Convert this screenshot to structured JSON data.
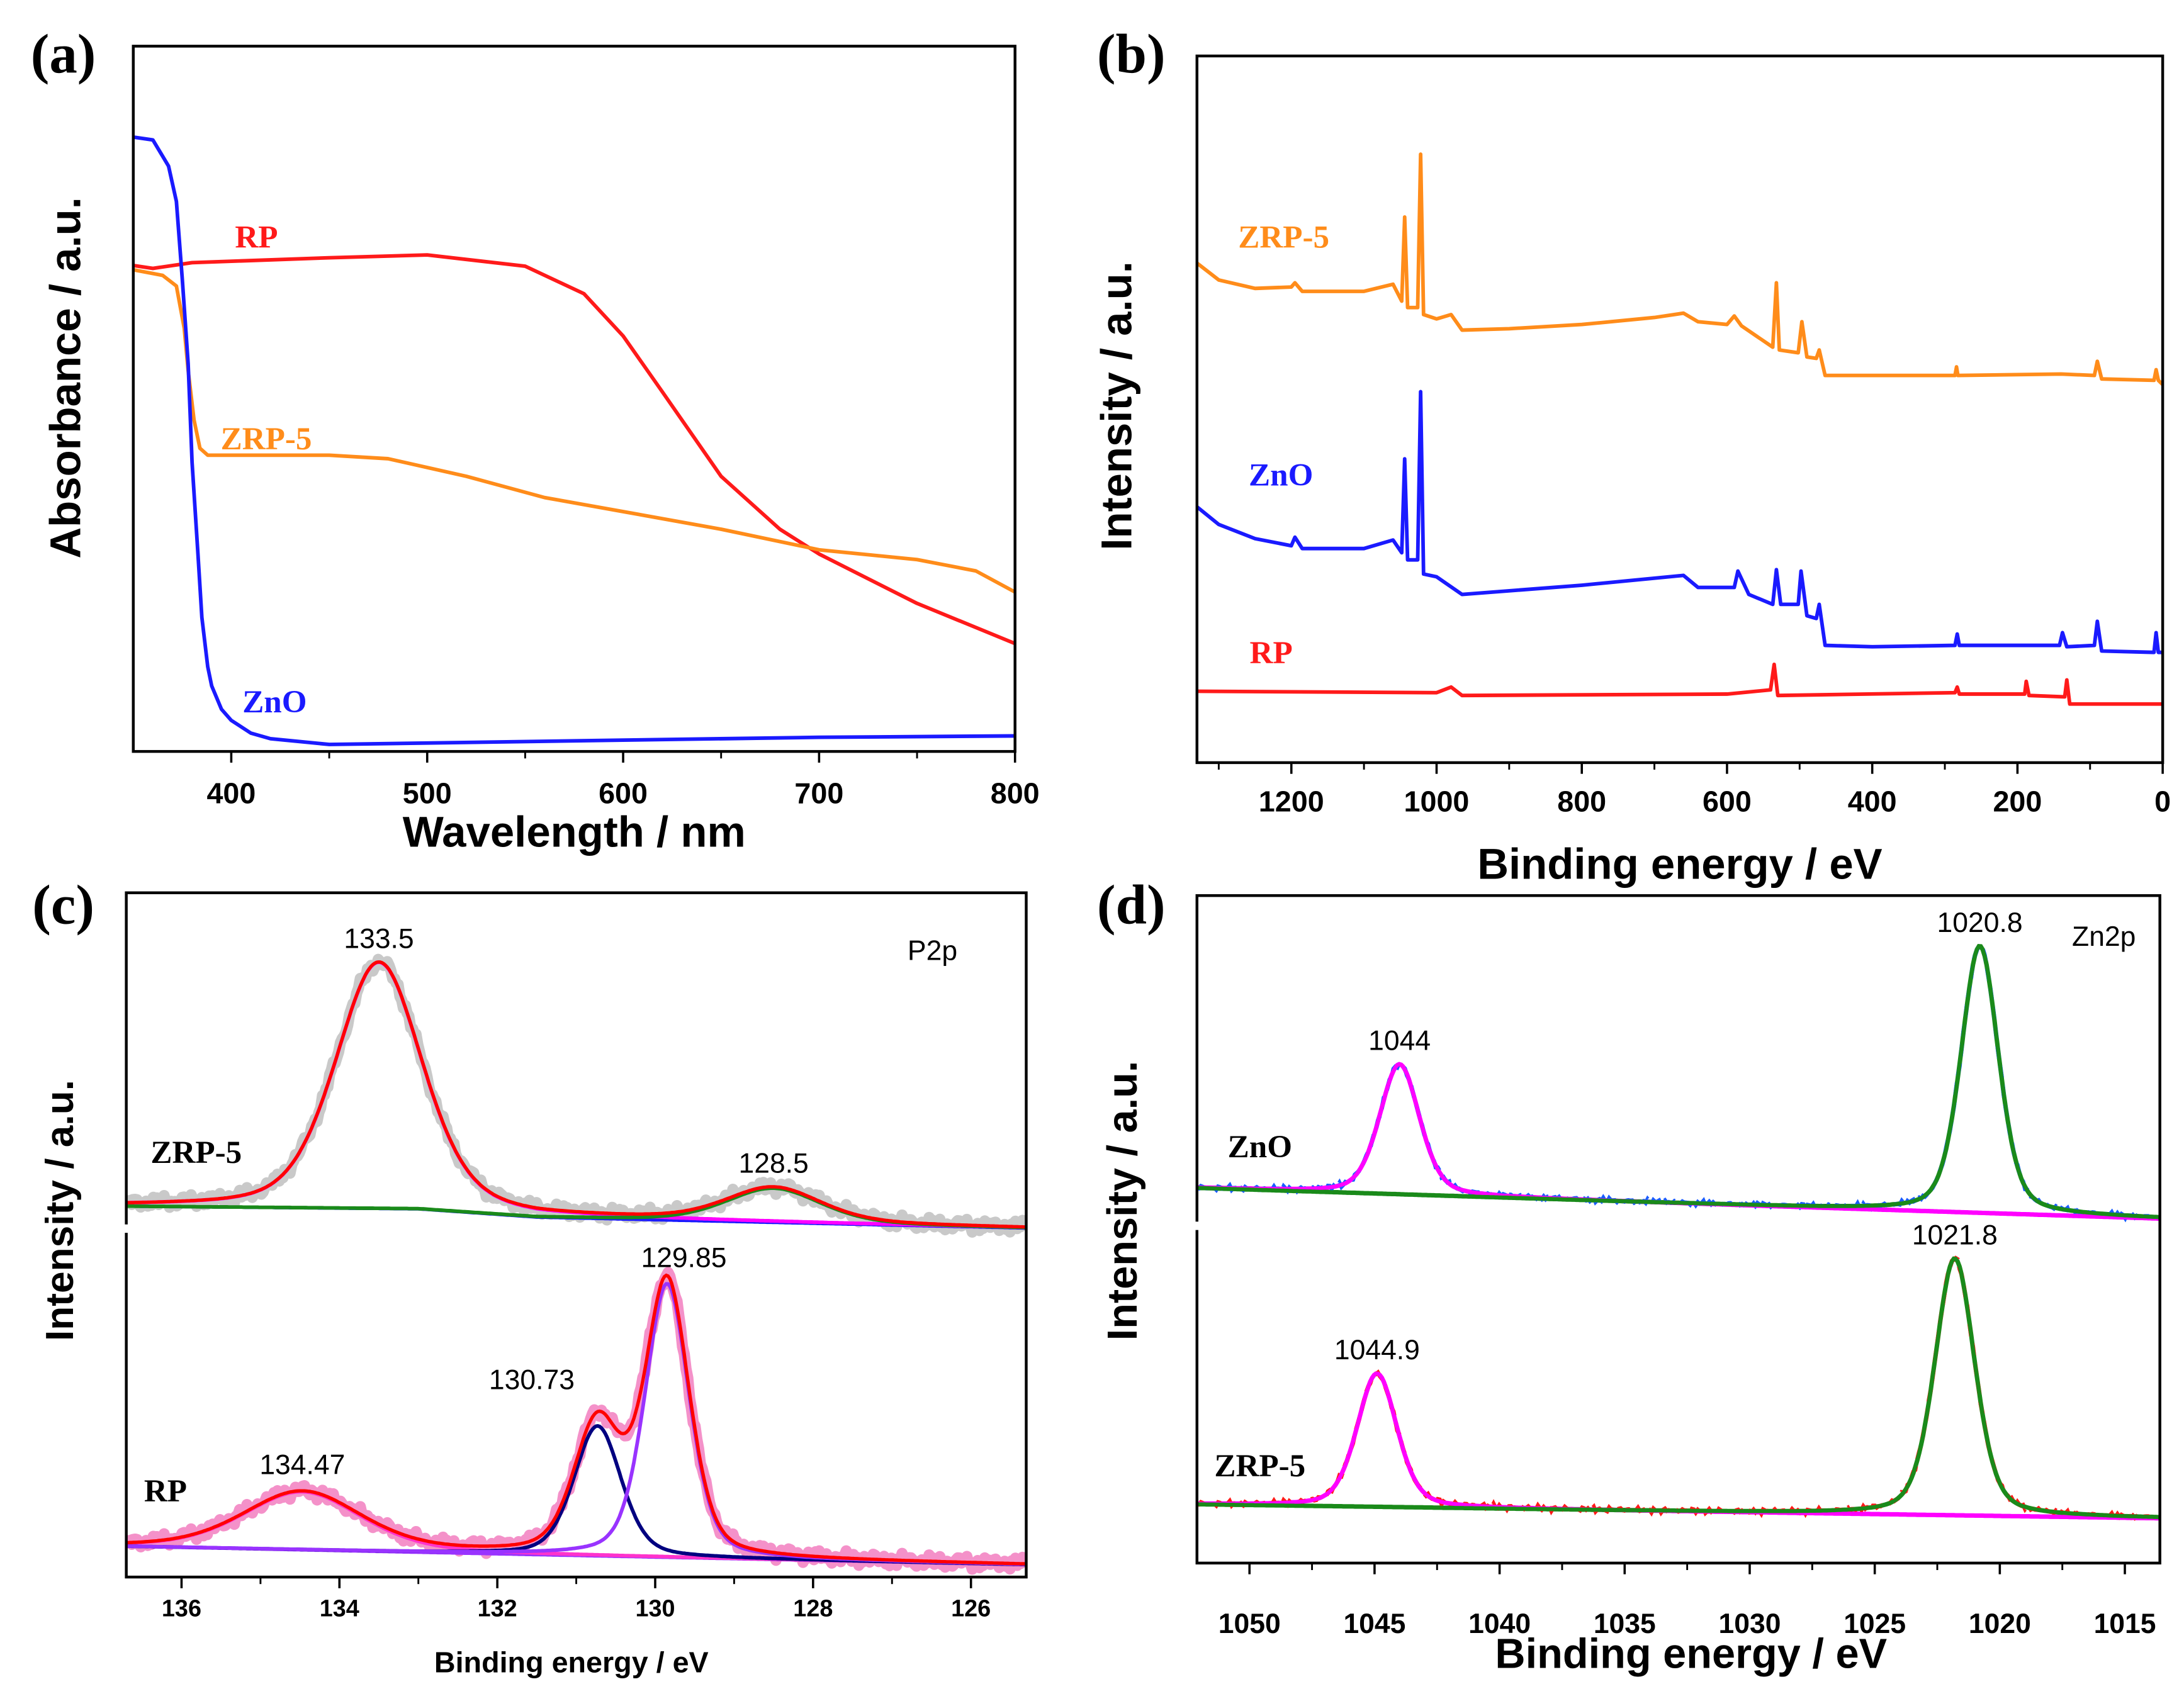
{
  "chart_data": [
    {
      "panel": "(a)",
      "type": "line",
      "xlabel": "Wavelength / nm",
      "ylabel": "Absorbance / a.u.",
      "xlim": [
        350,
        800
      ],
      "ylim": [
        0,
        100
      ],
      "xticks": [
        400,
        500,
        600,
        700,
        800
      ],
      "xtick_labels": [
        "400",
        "500",
        "600",
        "700",
        "800"
      ],
      "grid": false,
      "series": [
        {
          "label": "RP",
          "color": "#ff1a1a",
          "points": [
            [
              350,
              68.9
            ],
            [
              360,
              68.5
            ],
            [
              380,
              69.3
            ],
            [
              450,
              70.0
            ],
            [
              500,
              70.4
            ],
            [
              550,
              68.8
            ],
            [
              580,
              64.9
            ],
            [
              600,
              58.9
            ],
            [
              620,
              51
            ],
            [
              650,
              39
            ],
            [
              680,
              31.5
            ],
            [
              700,
              28
            ],
            [
              750,
              21
            ],
            [
              800,
              15.3
            ]
          ]
        },
        {
          "label": "ZRP-5",
          "color": "#ff8c1a",
          "points": [
            [
              350,
              68.3
            ],
            [
              365,
              67.5
            ],
            [
              372,
              66
            ],
            [
              376,
              60
            ],
            [
              378,
              54
            ],
            [
              381,
              47
            ],
            [
              384,
              43
            ],
            [
              388,
              42
            ],
            [
              400,
              42
            ],
            [
              450,
              42
            ],
            [
              480,
              41.5
            ],
            [
              520,
              39
            ],
            [
              560,
              36
            ],
            [
              600,
              34
            ],
            [
              650,
              31.5
            ],
            [
              700,
              28.6
            ],
            [
              750,
              27.2
            ],
            [
              780,
              25.6
            ],
            [
              800,
              22.6
            ]
          ]
        },
        {
          "label": "ZnO",
          "color": "#1a1aff",
          "points": [
            [
              350,
              87.1
            ],
            [
              360,
              86.7
            ],
            [
              368,
              83
            ],
            [
              372,
              78
            ],
            [
              375,
              67
            ],
            [
              378,
              55
            ],
            [
              380,
              41
            ],
            [
              383,
              28
            ],
            [
              385,
              19
            ],
            [
              388,
              12
            ],
            [
              390,
              9.3
            ],
            [
              395,
              6
            ],
            [
              400,
              4.4
            ],
            [
              410,
              2.6
            ],
            [
              420,
              1.8
            ],
            [
              450,
              1.0
            ],
            [
              500,
              1.2
            ],
            [
              600,
              1.6
            ],
            [
              700,
              2.0
            ],
            [
              800,
              2.2
            ]
          ]
        }
      ]
    },
    {
      "panel": "(b)",
      "type": "line",
      "xlabel": "Binding energy / eV",
      "ylabel": "Intensity / a.u.",
      "xlim": [
        1330,
        0
      ],
      "ylim": [
        0,
        100
      ],
      "xticks": [
        1200,
        1000,
        800,
        600,
        400,
        200,
        0
      ],
      "xtick_labels": [
        "1200",
        "1000",
        "800",
        "600",
        "400",
        "200",
        "0"
      ],
      "grid": false,
      "series": [
        {
          "label": "ZRP-5",
          "color": "#ff8c1a",
          "points": [
            [
              1330,
              70.7
            ],
            [
              1300,
              68.3
            ],
            [
              1250,
              67.1
            ],
            [
              1200,
              67.3
            ],
            [
              1195,
              67.9
            ],
            [
              1185,
              66.7
            ],
            [
              1100,
              66.7
            ],
            [
              1060,
              67.7
            ],
            [
              1048,
              65.3
            ],
            [
              1044,
              77.2
            ],
            [
              1040,
              64.4
            ],
            [
              1026,
              64.4
            ],
            [
              1022,
              86.1
            ],
            [
              1018,
              63.4
            ],
            [
              1000,
              62.8
            ],
            [
              980,
              63.4
            ],
            [
              965,
              61.2
            ],
            [
              900,
              61.4
            ],
            [
              800,
              62.0
            ],
            [
              700,
              63.0
            ],
            [
              660,
              63.6
            ],
            [
              640,
              62.4
            ],
            [
              600,
              62.0
            ],
            [
              590,
              63.2
            ],
            [
              580,
              61.8
            ],
            [
              560,
              60.4
            ],
            [
              537,
              58.8
            ],
            [
              532,
              67.9
            ],
            [
              528,
              58.4
            ],
            [
              502,
              58.0
            ],
            [
              497,
              62.4
            ],
            [
              490,
              57.4
            ],
            [
              477,
              57.2
            ],
            [
              473,
              58.4
            ],
            [
              465,
              54.8
            ],
            [
              400,
              54.8
            ],
            [
              286,
              54.8
            ],
            [
              284,
              56.0
            ],
            [
              282,
              54.8
            ],
            [
              140,
              55.0
            ],
            [
              94,
              54.8
            ],
            [
              90,
              56.8
            ],
            [
              84,
              54.3
            ],
            [
              12,
              54.1
            ],
            [
              9,
              55.6
            ],
            [
              6,
              54.1
            ],
            [
              0,
              53.5
            ]
          ]
        },
        {
          "label": "ZnO",
          "color": "#1a1aff",
          "points": [
            [
              1330,
              36.2
            ],
            [
              1300,
              33.7
            ],
            [
              1250,
              31.7
            ],
            [
              1200,
              30.7
            ],
            [
              1195,
              31.9
            ],
            [
              1185,
              30.3
            ],
            [
              1100,
              30.3
            ],
            [
              1060,
              31.5
            ],
            [
              1048,
              29.7
            ],
            [
              1044,
              43.0
            ],
            [
              1040,
              28.7
            ],
            [
              1026,
              28.7
            ],
            [
              1022,
              52.5
            ],
            [
              1018,
              26.7
            ],
            [
              1000,
              26.3
            ],
            [
              965,
              23.8
            ],
            [
              800,
              25.1
            ],
            [
              660,
              26.5
            ],
            [
              640,
              24.8
            ],
            [
              590,
              24.8
            ],
            [
              585,
              27.1
            ],
            [
              570,
              23.8
            ],
            [
              537,
              22.4
            ],
            [
              532,
              27.3
            ],
            [
              526,
              22.4
            ],
            [
              502,
              22.4
            ],
            [
              498,
              27.1
            ],
            [
              490,
              20.8
            ],
            [
              477,
              20.4
            ],
            [
              473,
              22.4
            ],
            [
              465,
              16.6
            ],
            [
              400,
              16.4
            ],
            [
              286,
              16.6
            ],
            [
              283,
              18.2
            ],
            [
              280,
              16.6
            ],
            [
              142,
              16.6
            ],
            [
              138,
              18.4
            ],
            [
              132,
              16.4
            ],
            [
              94,
              16.6
            ],
            [
              90,
              20.0
            ],
            [
              84,
              15.8
            ],
            [
              12,
              15.6
            ],
            [
              9,
              18.4
            ],
            [
              6,
              15.6
            ],
            [
              0,
              15.6
            ]
          ]
        },
        {
          "label": "RP",
          "color": "#ff1a1a",
          "points": [
            [
              1330,
              10.1
            ],
            [
              1000,
              9.9
            ],
            [
              980,
              10.7
            ],
            [
              965,
              9.5
            ],
            [
              600,
              9.7
            ],
            [
              540,
              10.3
            ],
            [
              535,
              13.9
            ],
            [
              530,
              9.5
            ],
            [
              286,
              9.9
            ],
            [
              283,
              10.7
            ],
            [
              280,
              9.7
            ],
            [
              190,
              9.7
            ],
            [
              188,
              11.5
            ],
            [
              184,
              9.5
            ],
            [
              135,
              9.3
            ],
            [
              132,
              11.7
            ],
            [
              128,
              8.3
            ],
            [
              0,
              8.3
            ]
          ]
        }
      ]
    },
    {
      "panel": "(c)",
      "type": "line",
      "xlabel": "Binding energy / eV",
      "ylabel": "Intensity / a.u.",
      "annotation": "P2p",
      "xlim": [
        136.7,
        125.3
      ],
      "ylim": [
        0,
        100
      ],
      "xticks": [
        136,
        134,
        132,
        130,
        128,
        126
      ],
      "xtick_labels": [
        "136",
        "134",
        "132",
        "130",
        "128",
        "126"
      ],
      "grid": false,
      "samples": [
        {
          "label": "ZRP-5",
          "raw_color": "#c0c0c0",
          "raw_style": "thick",
          "envelope_color": "#ff0000",
          "background_color": "#1a1aff",
          "background": [
            [
              136.7,
              54.2
            ],
            [
              133,
              53.8
            ],
            [
              131.5,
              52.6
            ],
            [
              125.3,
              51.0
            ]
          ],
          "peaks": [
            {
              "center": 133.5,
              "amplitude": 36,
              "sigma": 0.55,
              "color": "#ff00ff",
              "label": "133.5"
            },
            {
              "center": 128.5,
              "amplitude": 5,
              "sigma": 0.6,
              "color": "#1a8a1a",
              "label": "128.5"
            }
          ]
        },
        {
          "label": "RP",
          "raw_color": "#f27ec0",
          "raw_style": "thick",
          "envelope_color": "#ff0000",
          "background_color": "#9933ff",
          "background": [
            [
              136.7,
              4.5
            ],
            [
              125.3,
              1.8
            ]
          ],
          "peaks": [
            {
              "center": 134.47,
              "amplitude": 8.5,
              "sigma": 0.75,
              "color": "#ff33cc",
              "label": "134.47"
            },
            {
              "center": 130.73,
              "amplitude": 19,
              "sigma": 0.3,
              "color": "#000080",
              "label": "130.73"
            },
            {
              "center": 129.85,
              "amplitude": 40,
              "sigma": 0.28,
              "color": "#9933ff",
              "label": "129.85"
            }
          ]
        }
      ]
    },
    {
      "panel": "(d)",
      "type": "line",
      "xlabel": "Binding energy / eV",
      "ylabel": "Intensity / a.u.",
      "annotation": "Zn2p",
      "xlim": [
        1052.1,
        1013.6
      ],
      "ylim": [
        0,
        100
      ],
      "xticks": [
        1050,
        1045,
        1040,
        1035,
        1030,
        1025,
        1020,
        1015
      ],
      "xtick_labels": [
        "1050",
        "1045",
        "1040",
        "1035",
        "1030",
        "1025",
        "1020",
        "1015"
      ],
      "grid": false,
      "samples": [
        {
          "label": "ZnO",
          "raw_color": "#1a5cff",
          "raw_style": "dashed",
          "background_color": "#1a8a1a",
          "background": [
            [
              1052.1,
              56.2
            ],
            [
              1013.6,
              51.6
            ]
          ],
          "peaks": [
            {
              "center": 1044,
              "amplitude": 19.5,
              "sigma": 0.8,
              "color": "#ff00ff",
              "label": "1044"
            },
            {
              "center": 1020.8,
              "amplitude": 40,
              "sigma": 0.75,
              "color": "#1a8a1a",
              "label": "1020.8"
            }
          ]
        },
        {
          "label": "ZRP-5",
          "raw_color": "#ff1a1a",
          "raw_style": "dashed",
          "background_color": "#1a8a1a",
          "background": [
            [
              1052.1,
              8.8
            ],
            [
              1013.6,
              6.7
            ]
          ],
          "peaks": [
            {
              "center": 1044.9,
              "amplitude": 20,
              "sigma": 0.8,
              "color": "#ff00ff",
              "label": "1044.9"
            },
            {
              "center": 1021.8,
              "amplitude": 38.5,
              "sigma": 0.8,
              "color": "#1a8a1a",
              "label": "1021.8"
            }
          ]
        }
      ]
    }
  ]
}
